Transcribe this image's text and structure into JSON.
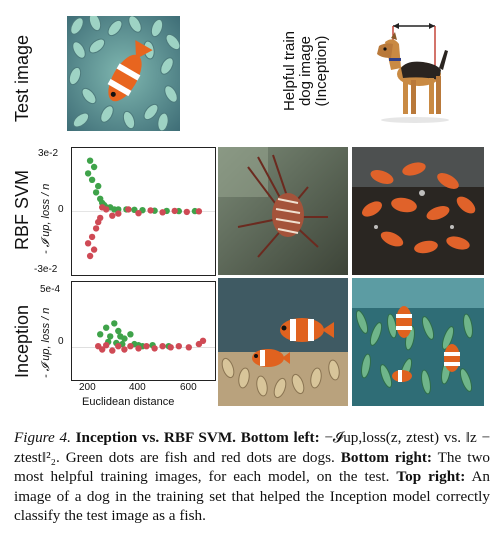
{
  "row_labels": {
    "test_image": "Test image",
    "rbf_svm": "RBF SVM",
    "inception": "Inception",
    "helpful_dog": [
      "Helpful train",
      "dog image",
      "(Inception)"
    ]
  },
  "icons": {
    "test_image": "clownfish-anemone-photo",
    "dog_image": "airedale-terrier-photo",
    "rbf_train_1": "lionfish-photo",
    "rbf_train_2": "goldfish-photo",
    "inc_train_1": "clownfish-anemone-photo",
    "inc_train_2": "clownfish-anemone-photo"
  },
  "colors": {
    "fish": "#3fa34a",
    "dog": "#cf4a55"
  },
  "chart_data": [
    {
      "type": "scatter",
      "title": "",
      "xlabel": "",
      "ylabel": "- 𝓘 up, loss / n",
      "ylim": [
        -0.03,
        0.03
      ],
      "ytick_labels": [
        "3e-2",
        "0",
        "-3e-2"
      ],
      "xtick_labels": [],
      "series": [
        {
          "name": "fish",
          "color": "#3fa34a",
          "points": [
            [
              150,
              0.018
            ],
            [
              160,
              0.024
            ],
            [
              170,
              0.015
            ],
            [
              180,
              0.021
            ],
            [
              190,
              0.009
            ],
            [
              200,
              0.012
            ],
            [
              210,
              0.006
            ],
            [
              220,
              0.004
            ],
            [
              230,
              0.003
            ],
            [
              240,
              0.002
            ],
            [
              260,
              0.002
            ],
            [
              280,
              0.001
            ],
            [
              300,
              0.001
            ],
            [
              340,
              0.001
            ],
            [
              380,
              0.0008
            ],
            [
              420,
              0.0006
            ],
            [
              480,
              0.0004
            ],
            [
              540,
              0.0003
            ],
            [
              600,
              0.0002
            ],
            [
              680,
              0.0002
            ]
          ]
        },
        {
          "name": "dog",
          "color": "#cf4a55",
          "points": [
            [
              150,
              -0.015
            ],
            [
              160,
              -0.021
            ],
            [
              170,
              -0.012
            ],
            [
              180,
              -0.018
            ],
            [
              190,
              -0.008
            ],
            [
              200,
              -0.005
            ],
            [
              210,
              -0.003
            ],
            [
              220,
              0.002
            ],
            [
              240,
              0.001
            ],
            [
              270,
              -0.002
            ],
            [
              300,
              -0.001
            ],
            [
              350,
              0.001
            ],
            [
              400,
              -0.0008
            ],
            [
              460,
              0.0005
            ],
            [
              520,
              -0.0004
            ],
            [
              580,
              0.0003
            ],
            [
              640,
              -0.0002
            ],
            [
              700,
              0.0001
            ]
          ]
        }
      ]
    },
    {
      "type": "scatter",
      "title": "",
      "xlabel": "Euclidean distance",
      "ylabel": "- 𝓘 up, loss / n",
      "ylim": [
        -0.0003,
        0.0006
      ],
      "ytick_labels": [
        "5e-4",
        "0"
      ],
      "xtick_labels": [
        "200",
        "400",
        "600"
      ],
      "xlim": [
        100,
        750
      ],
      "series": [
        {
          "name": "fish",
          "color": "#3fa34a",
          "points": [
            [
              210,
              0.00012
            ],
            [
              240,
              0.00018
            ],
            [
              260,
              0.0001
            ],
            [
              280,
              0.00022
            ],
            [
              300,
              0.00015
            ],
            [
              310,
              0.0001
            ],
            [
              330,
              8e-05
            ],
            [
              360,
              0.00012
            ],
            [
              250,
              5e-05
            ],
            [
              290,
              4e-05
            ],
            [
              320,
              3e-05
            ],
            [
              380,
              3e-05
            ],
            [
              400,
              2e-05
            ],
            [
              420,
              1e-05
            ],
            [
              470,
              2e-05
            ],
            [
              550,
              1e-05
            ]
          ]
        },
        {
          "name": "dog",
          "color": "#cf4a55",
          "points": [
            [
              200,
              1e-05
            ],
            [
              220,
              -2e-05
            ],
            [
              240,
              2e-05
            ],
            [
              270,
              -3e-05
            ],
            [
              300,
              1e-05
            ],
            [
              330,
              -2e-05
            ],
            [
              360,
              1e-05
            ],
            [
              400,
              -1e-05
            ],
            [
              440,
              1e-05
            ],
            [
              480,
              -1e-05
            ],
            [
              520,
              1e-05
            ],
            [
              560,
              0.0
            ],
            [
              600,
              1e-05
            ],
            [
              650,
              0.0
            ],
            [
              700,
              3e-05
            ],
            [
              720,
              6e-05
            ]
          ]
        }
      ]
    }
  ],
  "caption": {
    "figure": "Figure 4.",
    "title": "Inception vs. RBF SVM.",
    "bottom_left": "Bottom left:",
    "formula_a": "−𝓘up,loss(z, ztest)",
    "vs": "vs.",
    "formula_b": "‖z − ztest‖²₂.",
    "text_1": "Green dots are fish and red dots are dogs.",
    "bottom_right": "Bottom right:",
    "text_2": "The two most helpful training images, for each model, on the test.",
    "top_right": "Top right:",
    "text_3": "An image of a dog in the training set that helped the Inception model correctly classify the test image as a fish."
  }
}
